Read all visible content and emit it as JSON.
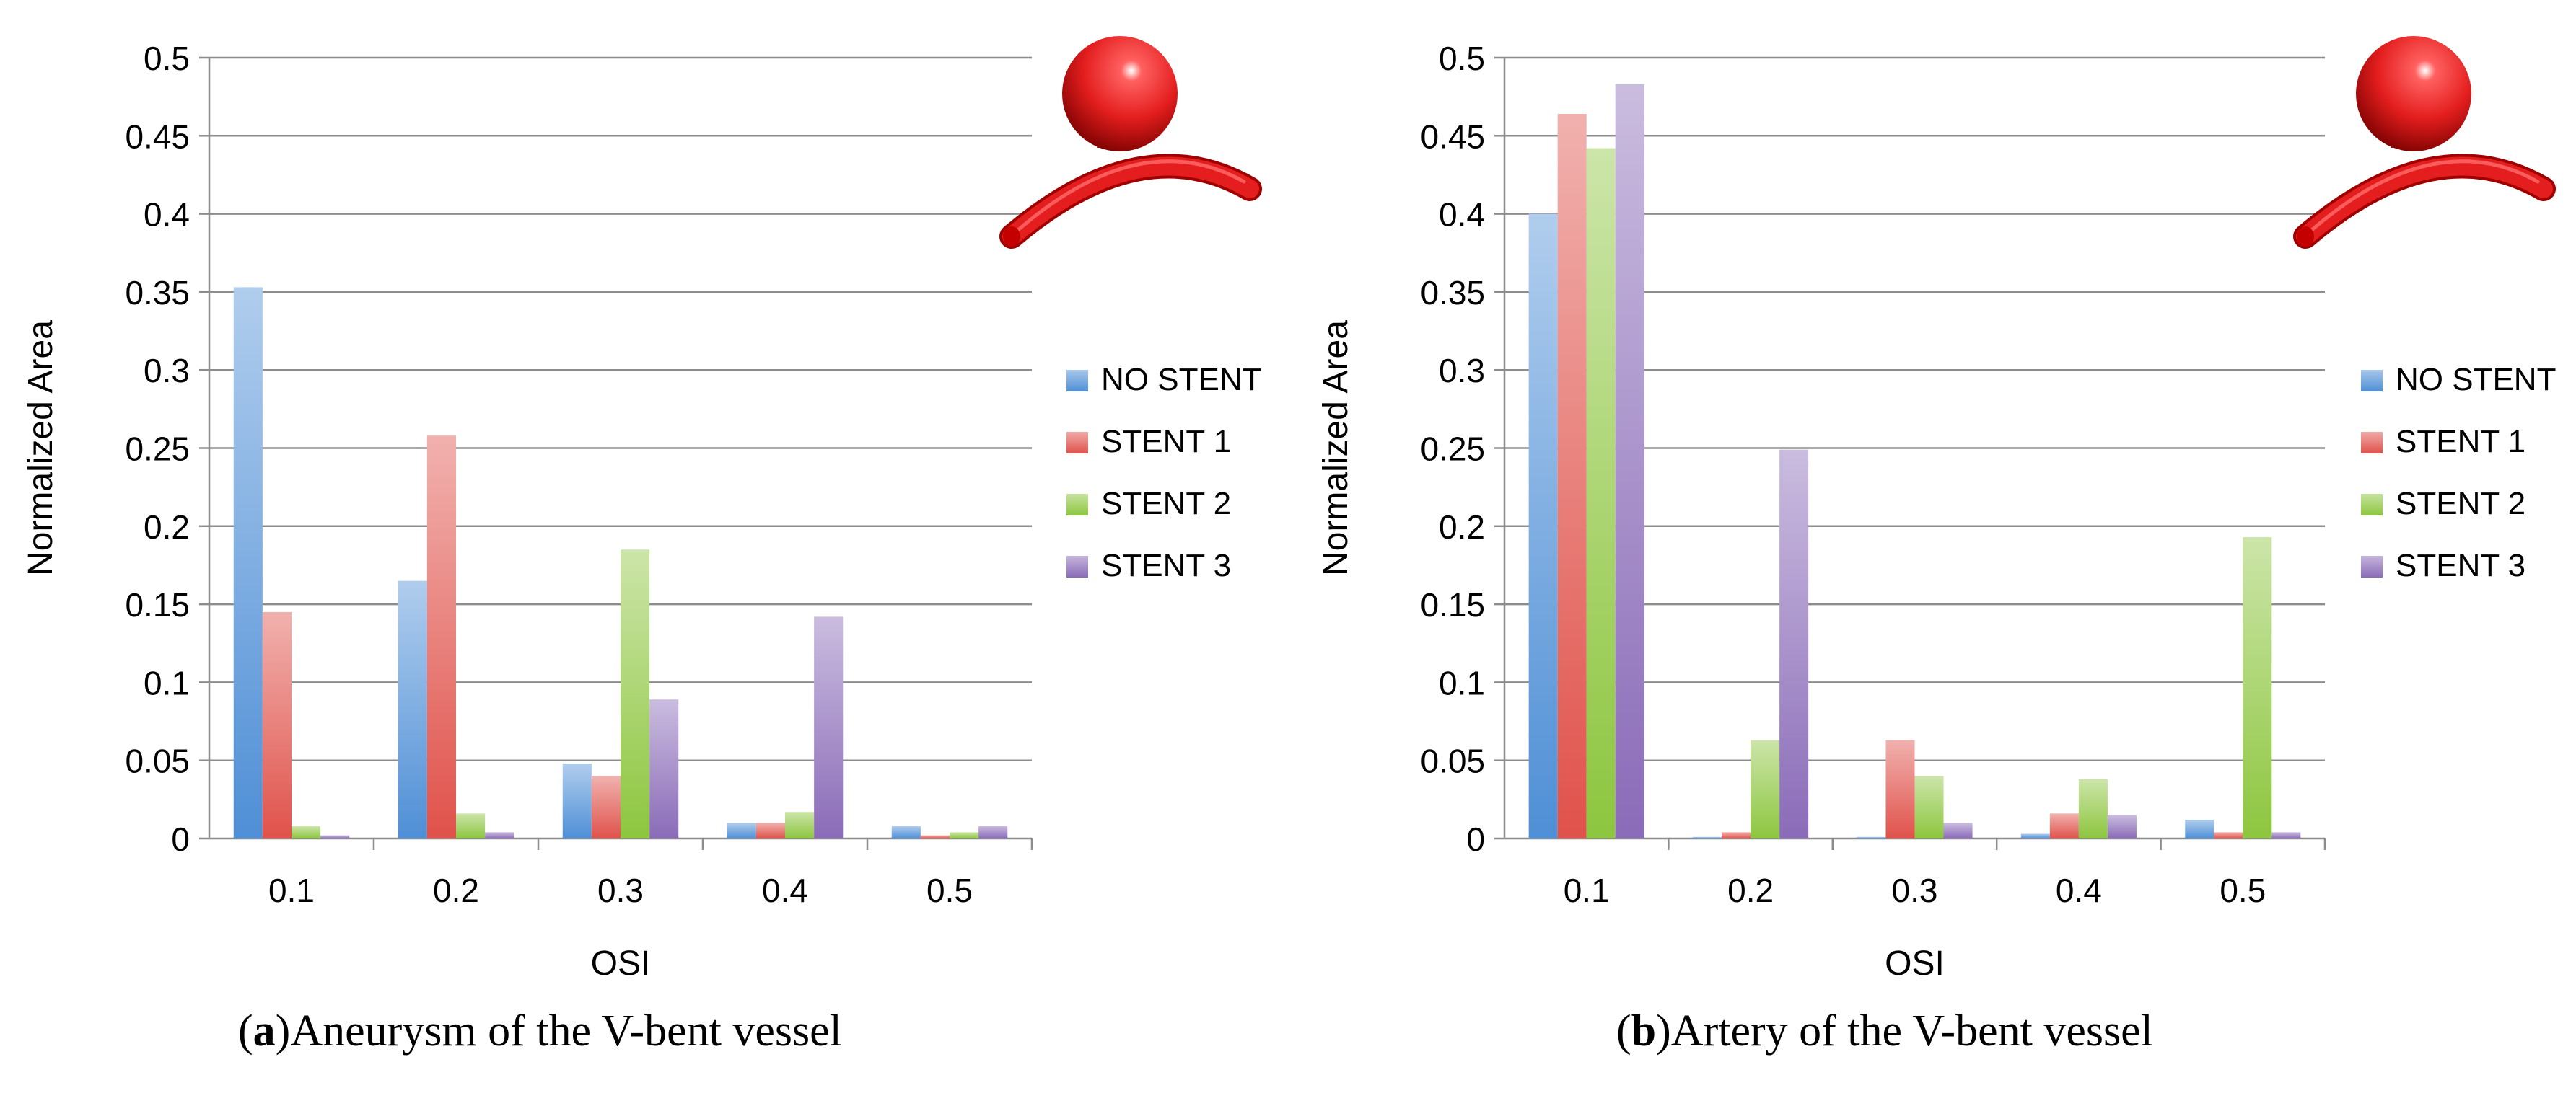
{
  "colors": {
    "no_stent": "#4f8fd6",
    "stent_1": "#e0524b",
    "stent_2": "#8dc63f",
    "stent_3": "#8a6bb8",
    "vessel": "#e41e1e",
    "grid": "#8c8c8c"
  },
  "chart_data": [
    {
      "type": "bar",
      "title": "",
      "xlabel": "OSI",
      "ylabel": "Normalized Area",
      "ylim": [
        0,
        0.5
      ],
      "yticks": [
        "0",
        "0.05",
        "0.1",
        "0.15",
        "0.2",
        "0.25",
        "0.3",
        "0.35",
        "0.4",
        "0.45",
        "0.5"
      ],
      "categories": [
        "0.1",
        "0.2",
        "0.3",
        "0.4",
        "0.5"
      ],
      "legend_position": "right",
      "series": [
        {
          "name": "NO STENT",
          "key": "no_stent",
          "values": [
            0.353,
            0.165,
            0.048,
            0.01,
            0.008
          ]
        },
        {
          "name": "STENT 1",
          "key": "stent_1",
          "values": [
            0.145,
            0.258,
            0.04,
            0.01,
            0.002
          ]
        },
        {
          "name": "STENT 2",
          "key": "stent_2",
          "values": [
            0.008,
            0.016,
            0.185,
            0.017,
            0.004
          ]
        },
        {
          "name": "STENT 3",
          "key": "stent_3",
          "values": [
            0.002,
            0.004,
            0.089,
            0.142,
            0.008
          ]
        }
      ],
      "caption_label": "a",
      "caption_text": "Aneurysm of the V-bent vessel"
    },
    {
      "type": "bar",
      "title": "",
      "xlabel": "OSI",
      "ylabel": "Normalized Area",
      "ylim": [
        0,
        0.5
      ],
      "yticks": [
        "0",
        "0.05",
        "0.1",
        "0.15",
        "0.2",
        "0.25",
        "0.3",
        "0.35",
        "0.4",
        "0.45",
        "0.5"
      ],
      "categories": [
        "0.1",
        "0.2",
        "0.3",
        "0.4",
        "0.5"
      ],
      "legend_position": "right",
      "series": [
        {
          "name": "NO STENT",
          "key": "no_stent",
          "values": [
            0.4,
            0.001,
            0.001,
            0.003,
            0.012
          ]
        },
        {
          "name": "STENT 1",
          "key": "stent_1",
          "values": [
            0.464,
            0.004,
            0.063,
            0.016,
            0.004
          ]
        },
        {
          "name": "STENT 2",
          "key": "stent_2",
          "values": [
            0.442,
            0.063,
            0.04,
            0.038,
            0.193
          ]
        },
        {
          "name": "STENT 3",
          "key": "stent_3",
          "values": [
            0.483,
            0.249,
            0.01,
            0.015,
            0.004
          ]
        }
      ],
      "caption_label": "b",
      "caption_text": "Artery of the V-bent vessel"
    }
  ]
}
